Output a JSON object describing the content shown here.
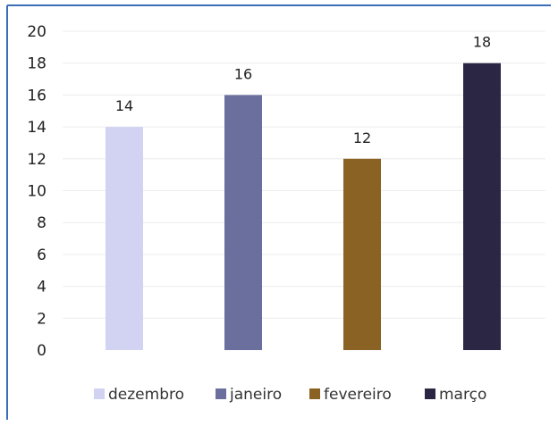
{
  "chart_data": {
    "type": "bar",
    "title": "",
    "xlabel": "",
    "ylabel": "",
    "categories": [
      "dezembro",
      "janeiro",
      "fevereiro",
      "março"
    ],
    "values": [
      14,
      16,
      12,
      18
    ],
    "colors": [
      "#d2d3f2",
      "#6a6f9d",
      "#8a6224",
      "#2c2645"
    ],
    "ylim": [
      0,
      20
    ],
    "yticks": [
      "0",
      "2",
      "4",
      "6",
      "8",
      "10",
      "12",
      "14",
      "16",
      "18",
      "20"
    ],
    "legend_position": "bottom",
    "grid": true,
    "data_labels": [
      "14",
      "16",
      "12",
      "18"
    ],
    "frame_color": "#3b6fb5",
    "grid_color": "#ececec"
  }
}
